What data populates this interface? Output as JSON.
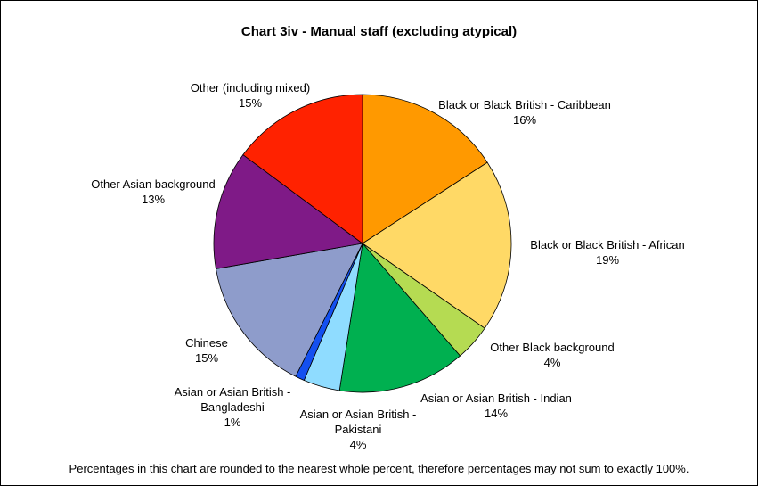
{
  "chart_data": {
    "type": "pie",
    "title": "Chart 3iv - Manual staff (excluding atypical)",
    "start_angle_deg": 0,
    "direction": "clockwise",
    "slices": [
      {
        "label_lines": [
          "Black or Black British - Caribbean"
        ],
        "value_label": "16%",
        "value": 16,
        "color": "#FF9900"
      },
      {
        "label_lines": [
          "Black or Black British - African"
        ],
        "value_label": "19%",
        "value": 19,
        "color": "#FFD966"
      },
      {
        "label_lines": [
          "Other Black background"
        ],
        "value_label": "4%",
        "value": 4,
        "color": "#B5DB52"
      },
      {
        "label_lines": [
          "Asian or Asian British - Indian"
        ],
        "value_label": "14%",
        "value": 14,
        "color": "#00B050"
      },
      {
        "label_lines": [
          "Asian or Asian British -",
          "Pakistani"
        ],
        "value_label": "4%",
        "value": 4,
        "color": "#8FDCFF"
      },
      {
        "label_lines": [
          "Asian or Asian British -",
          "Bangladeshi"
        ],
        "value_label": "1%",
        "value": 1,
        "color": "#1450F0"
      },
      {
        "label_lines": [
          "Chinese"
        ],
        "value_label": "15%",
        "value": 15,
        "color": "#8E9CCB"
      },
      {
        "label_lines": [
          "Other Asian background"
        ],
        "value_label": "13%",
        "value": 13,
        "color": "#7F1A87"
      },
      {
        "label_lines": [
          "Other (including mixed)"
        ],
        "value_label": "15%",
        "value": 15,
        "color": "#FF2200"
      }
    ],
    "footnote": "Percentages in this chart are rounded to the nearest whole percent, therefore percentages may not sum to exactly 100%."
  }
}
